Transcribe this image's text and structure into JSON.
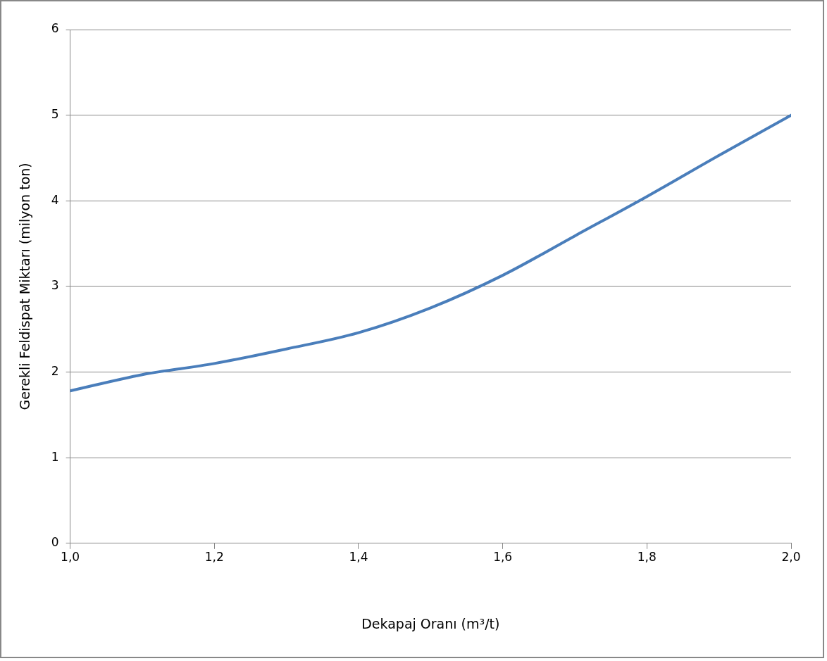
{
  "chart_data": {
    "type": "line",
    "xlabel": "Dekapaj Oranı (m³/t)",
    "ylabel": "Gerekli Feldispat Miktarı (milyon ton)",
    "x": [
      1.0,
      1.1,
      1.2,
      1.3,
      1.4,
      1.5,
      1.6,
      1.7,
      1.8,
      1.9,
      2.0
    ],
    "series": [
      {
        "color": "#4a7ebb",
        "values": [
          1.78,
          1.97,
          2.1,
          2.27,
          2.46,
          2.75,
          3.13,
          3.59,
          4.05,
          4.53,
          5.0
        ]
      }
    ],
    "xlim": [
      1.0,
      2.0
    ],
    "xticks": [
      {
        "value": 1.0,
        "label": "1,0"
      },
      {
        "value": 1.2,
        "label": "1,2"
      },
      {
        "value": 1.4,
        "label": "1,4"
      },
      {
        "value": 1.6,
        "label": "1,6"
      },
      {
        "value": 1.8,
        "label": "1,8"
      },
      {
        "value": 2.0,
        "label": "2,0"
      }
    ],
    "ylim": [
      0,
      6
    ],
    "yticks": [
      0,
      1,
      2,
      3,
      4,
      5,
      6
    ],
    "grid": "y",
    "legend": false,
    "marker": "none",
    "line_style": "solid"
  }
}
